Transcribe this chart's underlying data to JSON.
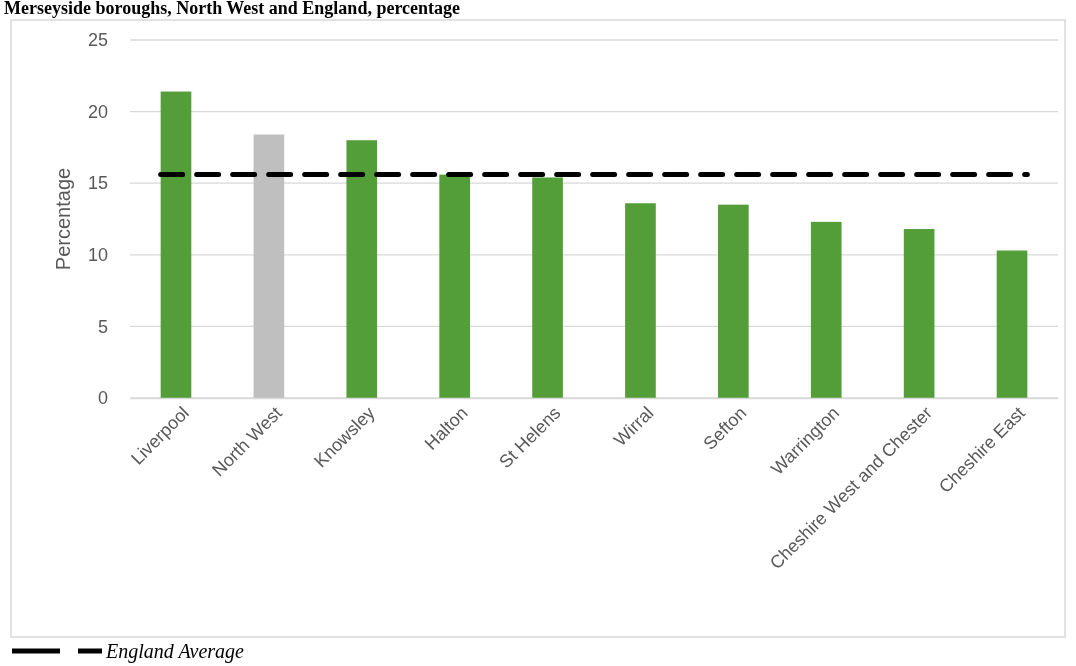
{
  "chart_data": {
    "type": "bar",
    "title": "Merseyside boroughs, North West and England, percentage",
    "ylabel": "Percentage",
    "categories": [
      "Liverpool",
      "North West",
      "Knowsley",
      "Halton",
      "St Helens",
      "Wirral",
      "Sefton",
      "Warrington",
      "Cheshire West and Chester",
      "Cheshire East"
    ],
    "values": [
      21.4,
      18.4,
      18.0,
      15.6,
      15.4,
      13.6,
      13.5,
      12.3,
      11.8,
      10.3
    ],
    "colors": [
      "#549e39",
      "#bfbfbf",
      "#549e39",
      "#549e39",
      "#549e39",
      "#549e39",
      "#549e39",
      "#549e39",
      "#549e39",
      "#549e39"
    ],
    "ylim": [
      0,
      25
    ],
    "yticks": [
      0,
      5,
      10,
      15,
      20,
      25
    ],
    "grid": "y",
    "legend": "bottom left",
    "ref_lines": [
      {
        "axis": "y",
        "value": 15.6,
        "label": "England Average",
        "color": "#000000",
        "line_style": "dashed"
      }
    ]
  }
}
